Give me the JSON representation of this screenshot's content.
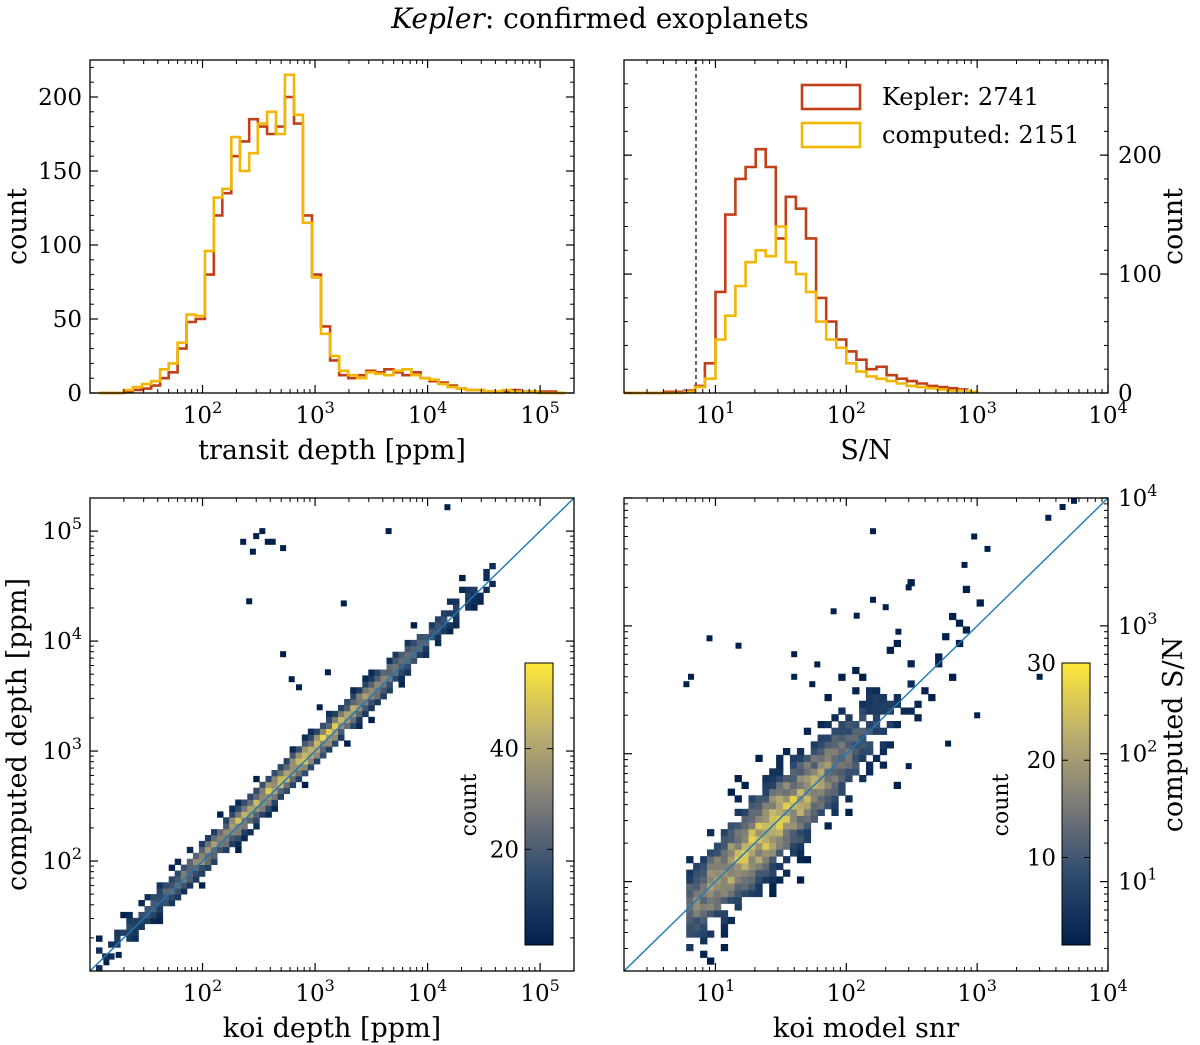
{
  "figure": {
    "title_italic": "Kepler",
    "title_rest": ": confirmed exoplanets"
  },
  "colors": {
    "kepler": "#c1401a",
    "computed": "#f2b705",
    "diagonal": "#1f77b4"
  },
  "chart_data": [
    {
      "id": "depth_hist",
      "type": "histogram",
      "xlabel": "transit depth [ppm]",
      "ylabel": "count",
      "xscale": "log",
      "xlim": [
        10,
        200000
      ],
      "ylim": [
        0,
        225
      ],
      "xticks": [
        {
          "v": 100,
          "base": "10",
          "exp": "2"
        },
        {
          "v": 1000,
          "base": "10",
          "exp": "3"
        },
        {
          "v": 10000,
          "base": "10",
          "exp": "4"
        },
        {
          "v": 100000,
          "base": "10",
          "exp": "5"
        }
      ],
      "yticks": [
        {
          "v": 0,
          "label": "0"
        },
        {
          "v": 50,
          "label": "50"
        },
        {
          "v": 100,
          "label": "100"
        },
        {
          "v": 150,
          "label": "150"
        },
        {
          "v": 200,
          "label": "200"
        }
      ],
      "series": [
        {
          "name": "Kepler",
          "color_key": "kepler",
          "edges": [
            12,
            14,
            17,
            20,
            24,
            29,
            35,
            42,
            50,
            60,
            72,
            87,
            105,
            126,
            150,
            180,
            215,
            260,
            310,
            375,
            450,
            540,
            650,
            780,
            940,
            1130,
            1360,
            1640,
            1970,
            2370,
            2850,
            3430,
            4130,
            4970,
            5980,
            7200,
            8660,
            10400,
            12500,
            15100,
            18200,
            21900,
            26300,
            31700,
            38100,
            45900,
            55200,
            66400,
            79900,
            96100,
            115700,
            139200,
            167500
          ],
          "counts": [
            0,
            0,
            0,
            1,
            2,
            3,
            5,
            10,
            14,
            30,
            48,
            50,
            80,
            120,
            135,
            160,
            170,
            185,
            180,
            175,
            180,
            200,
            182,
            120,
            80,
            45,
            22,
            12,
            10,
            12,
            15,
            14,
            16,
            14,
            12,
            14,
            10,
            8,
            7,
            5,
            3,
            2,
            2,
            1,
            1,
            1,
            2,
            1,
            1,
            1,
            1,
            0
          ]
        },
        {
          "name": "computed",
          "color_key": "computed",
          "edges": [
            12,
            14,
            17,
            20,
            24,
            29,
            35,
            42,
            50,
            60,
            72,
            87,
            105,
            126,
            150,
            180,
            215,
            260,
            310,
            375,
            450,
            540,
            650,
            780,
            940,
            1130,
            1360,
            1640,
            1970,
            2370,
            2850,
            3430,
            4130,
            4970,
            5980,
            7200,
            8660,
            10400,
            12500,
            15100,
            18200,
            21900,
            26300,
            31700,
            38100,
            45900,
            55200,
            66400,
            79900,
            96100,
            115700,
            139200,
            167500
          ],
          "counts": [
            0,
            0,
            0,
            2,
            4,
            6,
            8,
            16,
            20,
            34,
            53,
            52,
            96,
            132,
            138,
            173,
            150,
            162,
            182,
            190,
            175,
            215,
            188,
            115,
            78,
            40,
            25,
            15,
            12,
            10,
            14,
            13,
            12,
            15,
            16,
            12,
            10,
            9,
            6,
            4,
            3,
            2,
            2,
            1,
            1,
            2,
            1,
            1,
            1,
            0,
            0,
            0
          ]
        }
      ]
    },
    {
      "id": "snr_hist",
      "type": "histogram",
      "xlabel": "S/N",
      "ylabel": "count",
      "xscale": "log",
      "xlim": [
        2,
        10000
      ],
      "ylim": [
        0,
        280
      ],
      "xticks": [
        {
          "v": 10,
          "base": "10",
          "exp": "1"
        },
        {
          "v": 100,
          "base": "10",
          "exp": "2"
        },
        {
          "v": 1000,
          "base": "10",
          "exp": "3"
        },
        {
          "v": 10000,
          "base": "10",
          "exp": "4"
        }
      ],
      "yticks": [
        {
          "v": 0,
          "label": "0"
        },
        {
          "v": 100,
          "label": "100"
        },
        {
          "v": 200,
          "label": "200"
        }
      ],
      "vline": 7.1,
      "legend": {
        "location": "top-right",
        "entries": [
          {
            "label": "Kepler: 2741",
            "color_key": "kepler"
          },
          {
            "label": "computed: 2151",
            "color_key": "computed"
          }
        ]
      },
      "series": [
        {
          "name": "Kepler",
          "color_key": "kepler",
          "edges": [
            2.0,
            2.4,
            2.9,
            3.4,
            4.1,
            4.9,
            5.8,
            7.0,
            8.3,
            10.0,
            11.9,
            14.2,
            17.0,
            20.3,
            24.2,
            28.9,
            34.5,
            41.2,
            49.2,
            58.8,
            70.2,
            83.8,
            100.0,
            119.4,
            142.6,
            170.2,
            203.2,
            242.6,
            289.7,
            345.9,
            413.0,
            493.1,
            588.8,
            703.0,
            839.4,
            1000.0
          ],
          "counts": [
            0,
            0,
            0,
            0,
            1,
            1,
            2,
            6,
            25,
            85,
            150,
            180,
            190,
            205,
            190,
            130,
            165,
            155,
            130,
            80,
            60,
            45,
            35,
            28,
            20,
            22,
            15,
            12,
            10,
            8,
            6,
            5,
            4,
            3,
            1
          ]
        },
        {
          "name": "computed",
          "color_key": "computed",
          "edges": [
            2.0,
            2.4,
            2.9,
            3.4,
            4.1,
            4.9,
            5.8,
            7.0,
            8.3,
            10.0,
            11.9,
            14.2,
            17.0,
            20.3,
            24.2,
            28.9,
            34.5,
            41.2,
            49.2,
            58.8,
            70.2,
            83.8,
            100.0,
            119.4,
            142.6,
            170.2,
            203.2,
            242.6,
            289.7,
            345.9,
            413.0,
            493.1,
            588.8,
            703.0,
            839.4,
            1000.0
          ],
          "counts": [
            0,
            0,
            0,
            0,
            0,
            0,
            1,
            5,
            12,
            45,
            65,
            90,
            110,
            120,
            115,
            140,
            110,
            100,
            85,
            60,
            45,
            38,
            25,
            18,
            14,
            12,
            10,
            8,
            6,
            5,
            4,
            3,
            2,
            2,
            1
          ]
        }
      ]
    },
    {
      "id": "depth_2d",
      "type": "heatmap",
      "xlabel": "koi depth [ppm]",
      "ylabel": "computed depth [ppm]",
      "xscale": "log",
      "yscale": "log",
      "xlim": [
        10,
        200000
      ],
      "ylim": [
        10,
        200000
      ],
      "xticks": [
        {
          "v": 100,
          "base": "10",
          "exp": "2"
        },
        {
          "v": 1000,
          "base": "10",
          "exp": "3"
        },
        {
          "v": 10000,
          "base": "10",
          "exp": "4"
        },
        {
          "v": 100000,
          "base": "10",
          "exp": "5"
        }
      ],
      "yticks": [
        {
          "v": 100,
          "base": "10",
          "exp": "2"
        },
        {
          "v": 1000,
          "base": "10",
          "exp": "3"
        },
        {
          "v": 10000,
          "base": "10",
          "exp": "4"
        },
        {
          "v": 100000,
          "base": "10",
          "exp": "5"
        }
      ],
      "diagonal": true,
      "colorbar": {
        "label": "count",
        "min": 1,
        "max": 57,
        "ticks": [
          {
            "v": 20,
            "label": "20"
          },
          {
            "v": 40,
            "label": "40"
          }
        ]
      },
      "outliers": [
        [
          14,
          12
        ],
        [
          18,
          14
        ],
        [
          230,
          80000
        ],
        [
          340,
          100000
        ],
        [
          300,
          90000
        ],
        [
          380,
          80000
        ],
        [
          420,
          80000
        ],
        [
          520,
          70000
        ],
        [
          280,
          65000
        ],
        [
          260,
          23000
        ],
        [
          1800,
          22000
        ],
        [
          4500,
          100000
        ],
        [
          15000,
          165000
        ],
        [
          520,
          7600
        ],
        [
          620,
          4500
        ],
        [
          720,
          3800
        ],
        [
          1100,
          2500
        ],
        [
          1300,
          5200
        ]
      ]
    },
    {
      "id": "snr_2d",
      "type": "heatmap",
      "xlabel": "koi model snr",
      "ylabel": "computed S/N",
      "xscale": "log",
      "yscale": "log",
      "xlim": [
        2,
        10000
      ],
      "ylim": [
        2,
        10000
      ],
      "xticks": [
        {
          "v": 10,
          "base": "10",
          "exp": "1"
        },
        {
          "v": 100,
          "base": "10",
          "exp": "2"
        },
        {
          "v": 1000,
          "base": "10",
          "exp": "3"
        },
        {
          "v": 10000,
          "base": "10",
          "exp": "4"
        }
      ],
      "yticks": [
        {
          "v": 10,
          "base": "10",
          "exp": "1"
        },
        {
          "v": 100,
          "base": "10",
          "exp": "2"
        },
        {
          "v": 1000,
          "base": "10",
          "exp": "3"
        },
        {
          "v": 10000,
          "base": "10",
          "exp": "4"
        }
      ],
      "diagonal": true,
      "colorbar": {
        "label": "count",
        "min": 1,
        "max": 30,
        "ticks": [
          {
            "v": 10,
            "label": "10"
          },
          {
            "v": 20,
            "label": "20"
          },
          {
            "v": 30,
            "label": "30"
          }
        ]
      },
      "outliers": [
        [
          6,
          350
        ],
        [
          6.5,
          400
        ],
        [
          160,
          5500
        ],
        [
          300,
          2000
        ],
        [
          950,
          5000
        ],
        [
          1200,
          4000
        ],
        [
          5500,
          9500
        ],
        [
          4500,
          8500
        ],
        [
          3500,
          7000
        ],
        [
          800,
          3000
        ],
        [
          3000,
          400
        ],
        [
          160,
          1600
        ],
        [
          200,
          1400
        ],
        [
          250,
          900
        ],
        [
          120,
          1200
        ],
        [
          80,
          1300
        ],
        [
          9,
          800
        ],
        [
          15,
          700
        ],
        [
          40,
          600
        ],
        [
          60,
          500
        ],
        [
          55,
          350
        ],
        [
          40,
          400
        ],
        [
          1000,
          200
        ],
        [
          600,
          120
        ],
        [
          300,
          80
        ]
      ]
    }
  ]
}
